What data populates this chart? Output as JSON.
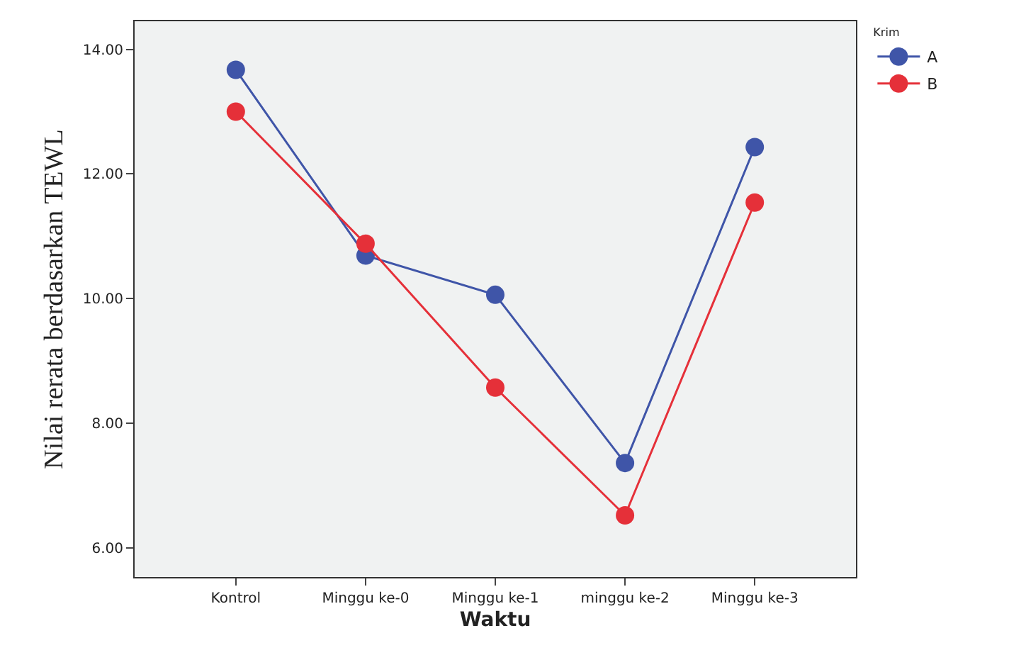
{
  "chart_data": {
    "type": "line",
    "xlabel": "Waktu",
    "ylabel": "Nilai rerata berdasarkan TEWL",
    "legend_title": "Krim",
    "categories": [
      "Kontrol",
      "Minggu ke-0",
      "Minggu ke-1",
      "minggu ke-2",
      "Minggu ke-3"
    ],
    "series": [
      {
        "name": "A",
        "color": "#3f55a8",
        "values": [
          13.67,
          10.69,
          10.06,
          7.36,
          12.43
        ]
      },
      {
        "name": "B",
        "color": "#e53039",
        "values": [
          13.0,
          10.88,
          8.57,
          6.52,
          11.54
        ]
      }
    ],
    "ylim": [
      5.53,
      14.45
    ],
    "yticks": [
      {
        "value": 6,
        "label": "6.00"
      },
      {
        "value": 8,
        "label": "8.00"
      },
      {
        "value": 10,
        "label": "10.00"
      },
      {
        "value": 12,
        "label": "12.00"
      },
      {
        "value": 14,
        "label": "14.00"
      }
    ],
    "grid": false,
    "legend": "top right",
    "marker": "circle",
    "line_style": "solid"
  }
}
